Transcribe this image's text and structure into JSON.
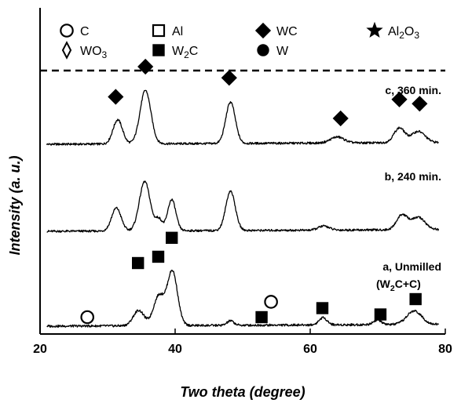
{
  "chart_data": {
    "type": "line",
    "title": "",
    "xlabel": "Two theta (degree)",
    "ylabel": "Intensity (a. u.)",
    "xlim": [
      20,
      80
    ],
    "xticks": [
      20,
      40,
      60,
      80
    ],
    "grid": false,
    "legend": [
      {
        "symbol": "open-circle",
        "label": "C",
        "base": "C",
        "sub": ""
      },
      {
        "symbol": "open-square",
        "label": "Al",
        "base": "Al",
        "sub": ""
      },
      {
        "symbol": "filled-diamond",
        "label": "WC",
        "base": "WC",
        "sub": ""
      },
      {
        "symbol": "filled-star",
        "label": "Al2O3",
        "base": "Al",
        "sub": "2",
        "base2": "O",
        "sub2": "3"
      },
      {
        "symbol": "open-diamond",
        "label": "WO3",
        "base": "WO",
        "sub": "3"
      },
      {
        "symbol": "filled-square",
        "label": "W2C",
        "base": "W",
        "sub": "2",
        "base2": "C"
      },
      {
        "symbol": "filled-circle",
        "label": "W",
        "base": "W",
        "sub": ""
      }
    ],
    "series": [
      {
        "name": "c, 360 min.",
        "peaks": [
          {
            "x": 31.5,
            "h": 0.28,
            "w": 0.7
          },
          {
            "x": 35.6,
            "h": 0.62,
            "w": 0.8
          },
          {
            "x": 48.2,
            "h": 0.48,
            "w": 0.7
          },
          {
            "x": 64.0,
            "h": 0.07,
            "w": 1.0
          },
          {
            "x": 73.2,
            "h": 0.17,
            "w": 0.8
          },
          {
            "x": 76.0,
            "h": 0.13,
            "w": 1.0
          }
        ],
        "markers": [
          {
            "x": 31.2,
            "symbol": "filled-diamond",
            "level": 0.55
          },
          {
            "x": 35.6,
            "symbol": "filled-diamond",
            "level": 0.9
          },
          {
            "x": 48.0,
            "symbol": "filled-diamond",
            "level": 0.77
          },
          {
            "x": 64.5,
            "symbol": "filled-diamond",
            "level": 0.3
          },
          {
            "x": 73.2,
            "symbol": "filled-diamond",
            "level": 0.52
          },
          {
            "x": 76.2,
            "symbol": "filled-diamond",
            "level": 0.47
          }
        ]
      },
      {
        "name": "b, 240 min.",
        "peaks": [
          {
            "x": 31.3,
            "h": 0.28,
            "w": 0.7
          },
          {
            "x": 35.5,
            "h": 0.6,
            "w": 0.8
          },
          {
            "x": 37.6,
            "h": 0.14,
            "w": 0.5
          },
          {
            "x": 39.5,
            "h": 0.38,
            "w": 0.6
          },
          {
            "x": 48.2,
            "h": 0.48,
            "w": 0.7
          },
          {
            "x": 62.0,
            "h": 0.05,
            "w": 0.8
          },
          {
            "x": 73.6,
            "h": 0.18,
            "w": 0.8
          },
          {
            "x": 76.0,
            "h": 0.15,
            "w": 1.0
          }
        ],
        "markers": []
      },
      {
        "name": "a, Unmilled",
        "name_line2_base": "(W",
        "name_line2_sub": "2",
        "name_line2_tail": "C+C)",
        "peaks": [
          {
            "x": 34.6,
            "h": 0.17,
            "w": 0.8
          },
          {
            "x": 37.6,
            "h": 0.33,
            "w": 0.8
          },
          {
            "x": 39.6,
            "h": 0.6,
            "w": 0.75
          },
          {
            "x": 48.2,
            "h": 0.05,
            "w": 0.5
          },
          {
            "x": 61.9,
            "h": 0.08,
            "w": 0.6
          },
          {
            "x": 69.9,
            "h": 0.05,
            "w": 0.6
          },
          {
            "x": 75.4,
            "h": 0.15,
            "w": 1.1
          }
        ],
        "markers": [
          {
            "x": 27.0,
            "symbol": "open-circle",
            "level": 0.1
          },
          {
            "x": 34.5,
            "symbol": "filled-square",
            "level": 0.7
          },
          {
            "x": 37.5,
            "symbol": "filled-square",
            "level": 0.77
          },
          {
            "x": 39.5,
            "symbol": "filled-square",
            "level": 0.98
          },
          {
            "x": 52.8,
            "symbol": "filled-square",
            "level": 0.1
          },
          {
            "x": 54.2,
            "symbol": "open-circle",
            "level": 0.27
          },
          {
            "x": 61.8,
            "symbol": "filled-square",
            "level": 0.2
          },
          {
            "x": 70.4,
            "symbol": "filled-square",
            "level": 0.13
          },
          {
            "x": 75.6,
            "symbol": "filled-square",
            "level": 0.3
          }
        ]
      }
    ]
  }
}
